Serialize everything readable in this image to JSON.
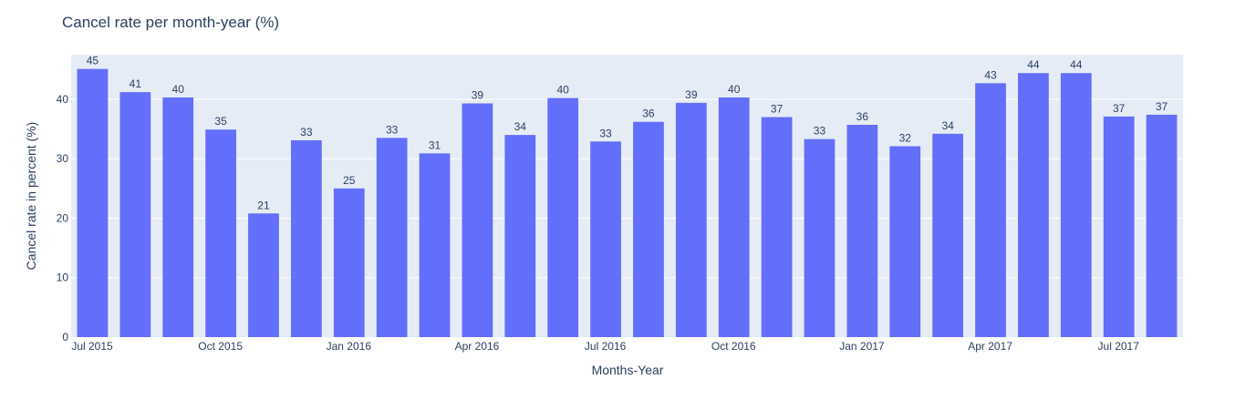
{
  "chart_data": {
    "type": "bar",
    "title": "Cancel rate per month-year (%)",
    "xlabel": "Months-Year",
    "ylabel": "Cancel rate in percent (%)",
    "x": [
      "2015-07",
      "2015-08",
      "2015-09",
      "2015-10",
      "2015-11",
      "2015-12",
      "2016-01",
      "2016-02",
      "2016-03",
      "2016-04",
      "2016-05",
      "2016-06",
      "2016-07",
      "2016-08",
      "2016-09",
      "2016-10",
      "2016-11",
      "2016-12",
      "2017-01",
      "2017-02",
      "2017-03",
      "2017-04",
      "2017-05",
      "2017-06",
      "2017-07",
      "2017-08"
    ],
    "values": [
      45.1,
      41.2,
      40.3,
      34.9,
      20.8,
      33.1,
      25.0,
      33.5,
      30.9,
      39.3,
      34.0,
      40.2,
      32.9,
      36.2,
      39.4,
      40.3,
      37.0,
      33.3,
      35.7,
      32.1,
      34.2,
      42.7,
      44.4,
      44.4,
      37.1,
      37.4
    ],
    "data_labels": [
      "45",
      "41",
      "40",
      "35",
      "21",
      "33",
      "25",
      "33",
      "31",
      "39",
      "34",
      "40",
      "33",
      "36",
      "39",
      "40",
      "37",
      "33",
      "36",
      "32",
      "34",
      "43",
      "44",
      "44",
      "37",
      "37"
    ],
    "ylim": [
      0,
      47.5
    ],
    "y_ticks": [
      0,
      10,
      20,
      30,
      40
    ],
    "y_tick_labels": [
      "0",
      "10",
      "20",
      "30",
      "40"
    ],
    "x_ticks": [
      {
        "index": 0,
        "label": "Jul 2015"
      },
      {
        "index": 3,
        "label": "Oct 2015"
      },
      {
        "index": 6,
        "label": "Jan 2016"
      },
      {
        "index": 9,
        "label": "Apr 2016"
      },
      {
        "index": 12,
        "label": "Jul 2016"
      },
      {
        "index": 15,
        "label": "Oct 2016"
      },
      {
        "index": 18,
        "label": "Jan 2017"
      },
      {
        "index": 21,
        "label": "Apr 2017"
      },
      {
        "index": 24,
        "label": "Jul 2017"
      }
    ],
    "grid": true,
    "colors": {
      "bar": "#636efa",
      "plot_bg": "#e5ecf6",
      "text": "#2a3f5f"
    }
  }
}
